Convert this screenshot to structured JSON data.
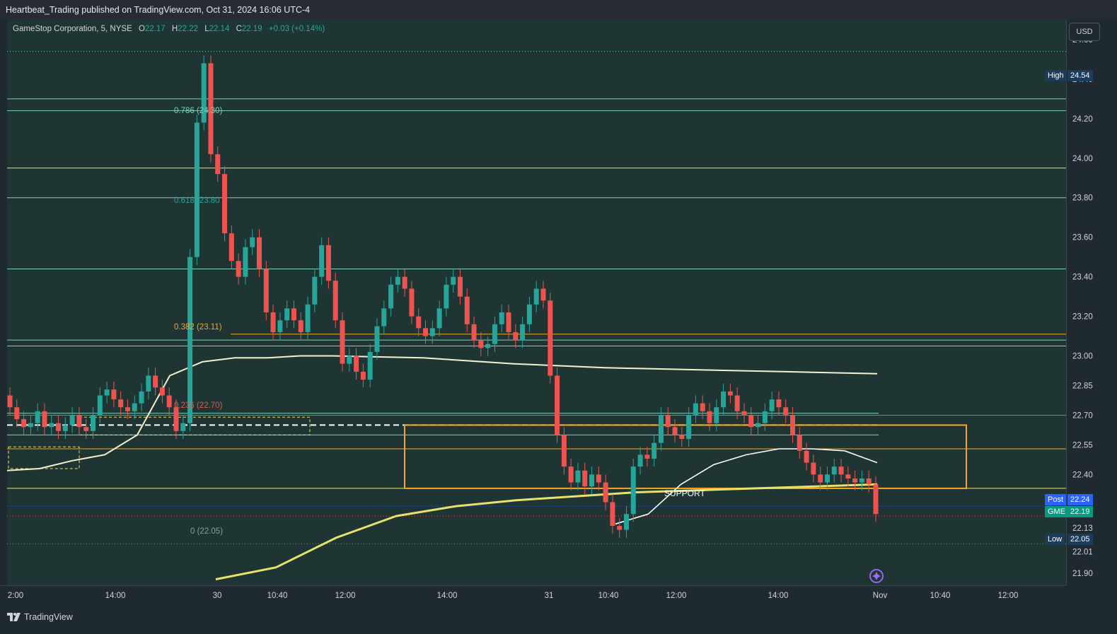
{
  "header": {
    "title": "Heartbeat_Trading published on TradingView.com, Oct 31, 2024 16:06 UTC-4"
  },
  "legend": {
    "symbol": "GameStop Corporation, 5, NYSE",
    "o_label": "O",
    "open": "22.17",
    "h_label": "H",
    "high": "22.22",
    "l_label": "L",
    "low": "22.14",
    "c_label": "C",
    "close": "22.19",
    "change": "+0.03 (+0.14%)"
  },
  "currency": "USD",
  "price_axis": {
    "ticks": [
      "24.60",
      "24.40",
      "24.20",
      "24.00",
      "23.80",
      "23.60",
      "23.40",
      "23.20",
      "23.00",
      "22.85",
      "22.70",
      "22.55",
      "22.40",
      "22.13",
      "22.01",
      "21.90"
    ],
    "high_label": "High",
    "high_value": "24.54",
    "post_label": "Post",
    "post_value": "22.24",
    "symbol_label": "GME",
    "symbol_value": "22.19",
    "low_label": "Low",
    "low_value": "22.05"
  },
  "time_axis": {
    "ticks": [
      "2:00",
      "14:00",
      "30",
      "10:40",
      "12:00",
      "14:00",
      "31",
      "10:40",
      "12:00",
      "14:00",
      "Nov",
      "10:40",
      "12:00"
    ]
  },
  "fib_labels": [
    "0.786 (24.30)",
    "0.618 (23.80",
    "0.382 (23.11)",
    "0.236 (22.70)",
    "0 (22.05)"
  ],
  "annotation": {
    "support": "SUPPORT"
  },
  "footer": {
    "brand": "TradingView"
  },
  "colors": {
    "up": "#26a69a",
    "down": "#ef5350",
    "fib_green": "#7ad3b5",
    "fib_yellow": "#e8e26a",
    "fib_orange": "#f5a623",
    "fib_red": "#e05a4f",
    "vwap": "#f4f1cf",
    "support_box": "#f5a623"
  },
  "chart_data": {
    "type": "candlestick",
    "symbol": "GameStop Corporation, 5, NYSE",
    "ylim": [
      21.84,
      24.7
    ],
    "fib_levels": [
      {
        "label": "0.786 (24.30)",
        "value": 24.3
      },
      {
        "label": "0.618 (23.80",
        "value": 23.8
      },
      {
        "label": "0.382 (23.11)",
        "value": 23.11
      },
      {
        "label": "0.236 (22.70)",
        "value": 22.7
      },
      {
        "label": "0 (22.05)",
        "value": 22.05
      }
    ],
    "horizontal_levels": [
      24.54,
      24.3,
      24.24,
      23.95,
      23.8,
      23.44,
      23.11,
      23.08,
      23.05,
      22.71,
      22.7,
      22.65,
      22.6,
      22.53,
      22.33,
      22.24,
      22.19,
      22.05
    ],
    "support_zone": {
      "label": "SUPPORT",
      "top": 22.65,
      "bottom": 22.33
    },
    "vwap_day1": [
      22.42,
      22.43,
      22.47,
      22.5,
      22.6,
      22.9,
      22.97,
      22.99,
      22.99,
      23.0,
      23.0
    ],
    "vwap_day2": [
      23.0,
      22.99,
      22.96,
      22.94,
      22.93,
      22.92,
      22.91
    ],
    "vwap_day3": [
      22.15,
      22.2,
      22.35,
      22.45,
      22.5,
      22.53,
      22.53,
      22.52,
      22.46
    ],
    "prior_vwap": [
      21.87,
      21.93,
      22.08,
      22.19,
      22.24,
      22.27,
      22.29,
      22.31,
      22.32,
      22.33,
      22.34,
      22.35
    ],
    "candles": [
      [
        22.8,
        22.74
      ],
      [
        22.74,
        22.68
      ],
      [
        22.68,
        22.64
      ],
      [
        22.64,
        22.66
      ],
      [
        22.66,
        22.72
      ],
      [
        22.72,
        22.64
      ],
      [
        22.64,
        22.66
      ],
      [
        22.66,
        22.62
      ],
      [
        22.62,
        22.65
      ],
      [
        22.65,
        22.7
      ],
      [
        22.7,
        22.64
      ],
      [
        22.64,
        22.62
      ],
      [
        22.62,
        22.7
      ],
      [
        22.7,
        22.8
      ],
      [
        22.8,
        22.83
      ],
      [
        22.83,
        22.78
      ],
      [
        22.78,
        22.74
      ],
      [
        22.74,
        22.72
      ],
      [
        22.72,
        22.76
      ],
      [
        22.76,
        22.82
      ],
      [
        22.82,
        22.9
      ],
      [
        22.9,
        22.84
      ],
      [
        22.84,
        22.8
      ],
      [
        22.8,
        22.74
      ],
      [
        22.74,
        22.62
      ],
      [
        22.62,
        22.66
      ],
      [
        22.66,
        23.5
      ],
      [
        23.5,
        24.18
      ],
      [
        24.18,
        24.48
      ],
      [
        24.48,
        24.02
      ],
      [
        24.02,
        23.92
      ],
      [
        23.92,
        23.62
      ],
      [
        23.62,
        23.48
      ],
      [
        23.48,
        23.4
      ],
      [
        23.4,
        23.55
      ],
      [
        23.55,
        23.6
      ],
      [
        23.6,
        23.44
      ],
      [
        23.44,
        23.22
      ],
      [
        23.22,
        23.12
      ],
      [
        23.12,
        23.18
      ],
      [
        23.18,
        23.24
      ],
      [
        23.24,
        23.18
      ],
      [
        23.18,
        23.12
      ],
      [
        23.12,
        23.26
      ],
      [
        23.26,
        23.4
      ],
      [
        23.4,
        23.56
      ],
      [
        23.56,
        23.38
      ],
      [
        23.38,
        23.18
      ],
      [
        23.18,
        22.96
      ],
      [
        22.96,
        23.0
      ],
      [
        23.0,
        22.92
      ],
      [
        22.92,
        22.88
      ],
      [
        22.88,
        23.02
      ],
      [
        23.02,
        23.15
      ],
      [
        23.15,
        23.24
      ],
      [
        23.24,
        23.36
      ],
      [
        23.36,
        23.4
      ],
      [
        23.4,
        23.34
      ],
      [
        23.34,
        23.2
      ],
      [
        23.2,
        23.14
      ],
      [
        23.14,
        23.1
      ],
      [
        23.1,
        23.14
      ],
      [
        23.14,
        23.24
      ],
      [
        23.24,
        23.36
      ],
      [
        23.36,
        23.4
      ],
      [
        23.4,
        23.3
      ],
      [
        23.3,
        23.16
      ],
      [
        23.16,
        23.08
      ],
      [
        23.08,
        23.04
      ],
      [
        23.04,
        23.06
      ],
      [
        23.06,
        23.16
      ],
      [
        23.16,
        23.22
      ],
      [
        23.22,
        23.12
      ],
      [
        23.12,
        23.08
      ],
      [
        23.08,
        23.16
      ],
      [
        23.16,
        23.26
      ],
      [
        23.26,
        23.34
      ],
      [
        23.34,
        23.28
      ],
      [
        23.28,
        22.9
      ],
      [
        22.9,
        22.6
      ],
      [
        22.6,
        22.44
      ],
      [
        22.44,
        22.36
      ],
      [
        22.36,
        22.42
      ],
      [
        22.42,
        22.34
      ],
      [
        22.34,
        22.4
      ],
      [
        22.4,
        22.36
      ],
      [
        22.36,
        22.26
      ],
      [
        22.26,
        22.14
      ],
      [
        22.14,
        22.12
      ],
      [
        22.12,
        22.2
      ],
      [
        22.2,
        22.44
      ],
      [
        22.44,
        22.5
      ],
      [
        22.5,
        22.48
      ],
      [
        22.48,
        22.56
      ],
      [
        22.56,
        22.7
      ],
      [
        22.7,
        22.64
      ],
      [
        22.64,
        22.6
      ],
      [
        22.6,
        22.58
      ],
      [
        22.58,
        22.7
      ],
      [
        22.7,
        22.76
      ],
      [
        22.76,
        22.72
      ],
      [
        22.72,
        22.66
      ],
      [
        22.66,
        22.74
      ],
      [
        22.74,
        22.82
      ],
      [
        22.82,
        22.8
      ],
      [
        22.8,
        22.72
      ],
      [
        22.72,
        22.7
      ],
      [
        22.7,
        22.64
      ],
      [
        22.64,
        22.66
      ],
      [
        22.66,
        22.72
      ],
      [
        22.72,
        22.78
      ],
      [
        22.78,
        22.74
      ],
      [
        22.74,
        22.7
      ],
      [
        22.7,
        22.6
      ],
      [
        22.6,
        22.52
      ],
      [
        22.52,
        22.46
      ],
      [
        22.46,
        22.4
      ],
      [
        22.4,
        22.36
      ],
      [
        22.36,
        22.4
      ],
      [
        22.4,
        22.44
      ],
      [
        22.44,
        22.4
      ],
      [
        22.4,
        22.38
      ],
      [
        22.38,
        22.36
      ],
      [
        22.36,
        22.38
      ],
      [
        22.38,
        22.35
      ],
      [
        22.35,
        22.2
      ]
    ]
  }
}
